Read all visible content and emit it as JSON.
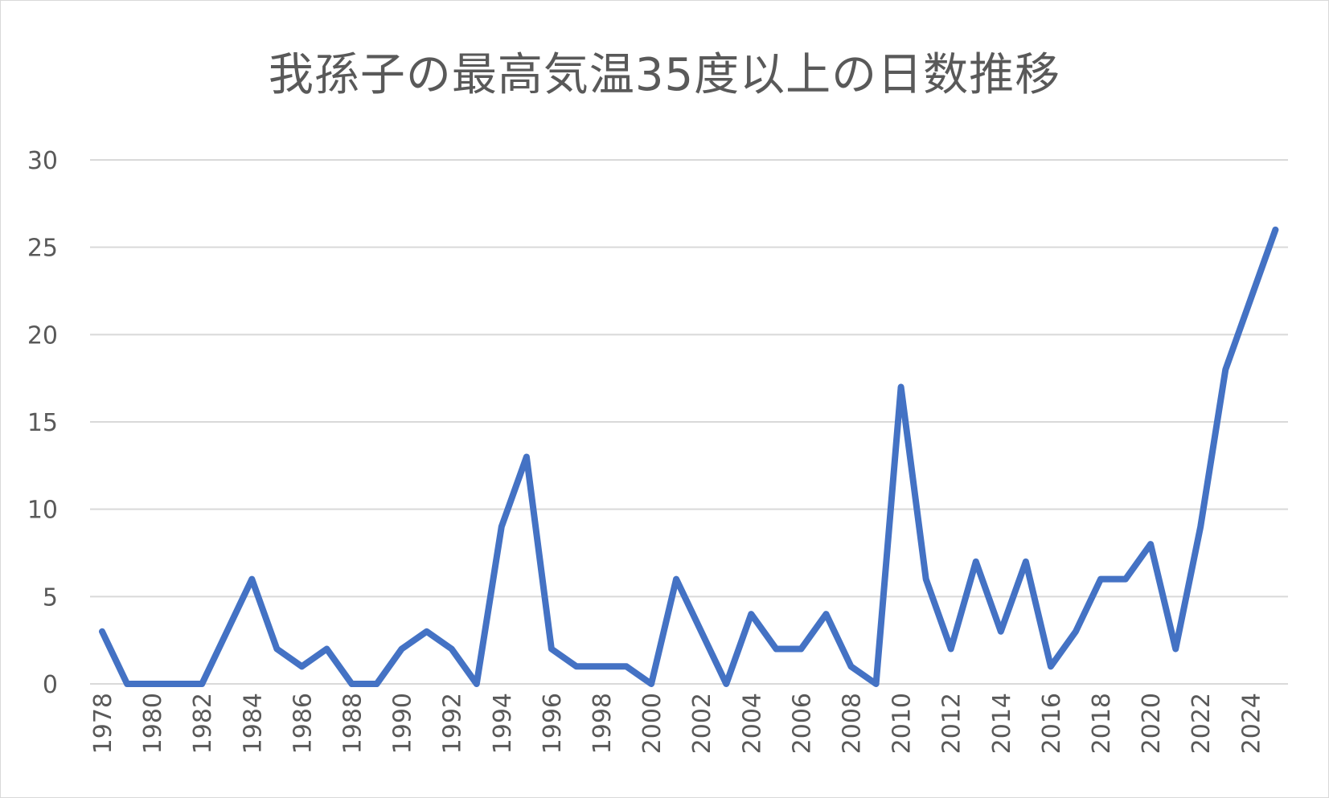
{
  "chart_data": {
    "type": "line",
    "title": "我孫子の最高気温35度以上の日数推移",
    "xlabel": "",
    "ylabel": "",
    "ylim": [
      0,
      30
    ],
    "y_ticks": [
      0,
      5,
      10,
      15,
      20,
      25,
      30
    ],
    "x_tick_labels": [
      "1978",
      "1980",
      "1982",
      "1984",
      "1986",
      "1988",
      "1990",
      "1992",
      "1994",
      "1996",
      "1998",
      "2000",
      "2002",
      "2004",
      "2006",
      "2008",
      "2010",
      "2012",
      "2014",
      "2016",
      "2018",
      "2020",
      "2022",
      "2024"
    ],
    "grid": "horizontal",
    "legend": "none",
    "x": [
      1978,
      1979,
      1980,
      1981,
      1982,
      1983,
      1984,
      1985,
      1986,
      1987,
      1988,
      1989,
      1990,
      1991,
      1992,
      1993,
      1994,
      1995,
      1996,
      1997,
      1998,
      1999,
      2000,
      2001,
      2002,
      2003,
      2004,
      2005,
      2006,
      2007,
      2008,
      2009,
      2010,
      2011,
      2012,
      2013,
      2014,
      2015,
      2016,
      2017,
      2018,
      2019,
      2020,
      2021,
      2022,
      2023,
      2024,
      2025
    ],
    "series": [
      {
        "color": "#4472c4",
        "values": [
          3,
          0,
          0,
          0,
          0,
          3,
          6,
          2,
          1,
          2,
          0,
          0,
          2,
          3,
          2,
          0,
          9,
          13,
          2,
          1,
          1,
          1,
          0,
          6,
          3,
          0,
          4,
          2,
          2,
          4,
          1,
          0,
          17,
          6,
          2,
          7,
          3,
          7,
          1,
          3,
          6,
          6,
          8,
          2,
          9,
          18,
          22,
          26
        ]
      }
    ]
  }
}
